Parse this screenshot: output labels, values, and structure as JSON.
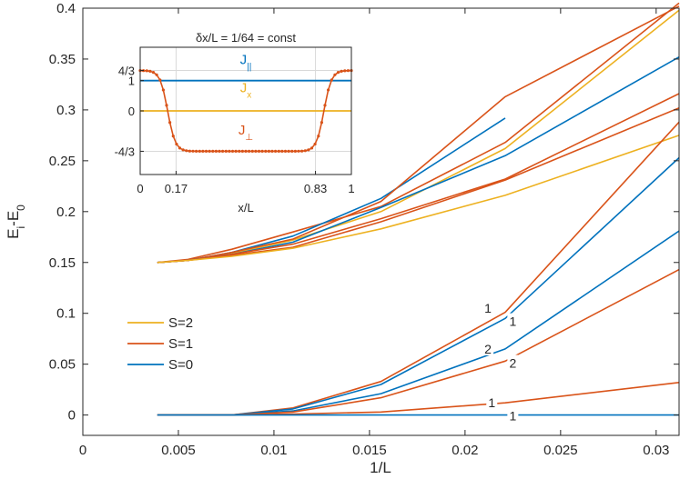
{
  "chart_data": {
    "type": "line",
    "xlabel": "1/L",
    "ylabel": "E_i-E_0",
    "xlim": [
      0,
      0.0312
    ],
    "ylim": [
      -0.02,
      0.4
    ],
    "xticks": [
      {
        "v": 0,
        "label": "0"
      },
      {
        "v": 0.005,
        "label": "0.005"
      },
      {
        "v": 0.01,
        "label": "0.01"
      },
      {
        "v": 0.015,
        "label": "0.015"
      },
      {
        "v": 0.02,
        "label": "0.02"
      },
      {
        "v": 0.025,
        "label": "0.025"
      },
      {
        "v": 0.03,
        "label": "0.03"
      }
    ],
    "yticks": [
      {
        "v": 0,
        "label": "0"
      },
      {
        "v": 0.05,
        "label": "0.05"
      },
      {
        "v": 0.1,
        "label": "0.1"
      },
      {
        "v": 0.15,
        "label": "0.15"
      },
      {
        "v": 0.2,
        "label": "0.2"
      },
      {
        "v": 0.25,
        "label": "0.25"
      },
      {
        "v": 0.3,
        "label": "0.3"
      },
      {
        "v": 0.35,
        "label": "0.35"
      },
      {
        "v": 0.4,
        "label": "0.4"
      }
    ],
    "colors": {
      "S=2": "#EDB120",
      "S=1": "#D95319",
      "S=0": "#0072BD"
    },
    "legend": [
      {
        "label": "S=2",
        "color": "#EDB120"
      },
      {
        "label": "S=1",
        "color": "#D95319"
      },
      {
        "label": "S=0",
        "color": "#0072BD"
      }
    ],
    "series": [
      {
        "name": "S=1",
        "color": "#D95319",
        "x": [
          0.0039,
          0.0055,
          0.0078,
          0.011,
          0.0156,
          0.0221,
          0.0312
        ],
        "y": [
          0.15,
          0.153,
          0.163,
          0.18,
          0.205,
          0.268,
          0.405
        ]
      },
      {
        "name": "S=2",
        "color": "#EDB120",
        "x": [
          0.0039,
          0.0055,
          0.0078,
          0.011,
          0.0156,
          0.0221,
          0.0312
        ],
        "y": [
          0.15,
          0.152,
          0.159,
          0.172,
          0.2,
          0.262,
          0.398
        ]
      },
      {
        "name": "S=0",
        "color": "#0072BD",
        "x": [
          0.0039,
          0.0055,
          0.0078,
          0.011,
          0.0156,
          0.0221
        ],
        "y": [
          0.15,
          0.152,
          0.16,
          0.176,
          0.213,
          0.292
        ]
      },
      {
        "name": "S=1",
        "color": "#D95319",
        "x": [
          0.0039,
          0.0055,
          0.0078,
          0.011,
          0.0156,
          0.0221,
          0.0312
        ],
        "y": [
          0.15,
          0.152,
          0.16,
          0.173,
          0.21,
          0.313,
          0.402
        ]
      },
      {
        "name": "S=0",
        "color": "#0072BD",
        "x": [
          0.0039,
          0.0055,
          0.0078,
          0.011,
          0.0156,
          0.0221,
          0.0312
        ],
        "y": [
          0.15,
          0.152,
          0.158,
          0.17,
          0.204,
          0.255,
          0.352
        ]
      },
      {
        "name": "S=1",
        "color": "#D95319",
        "x": [
          0.0039,
          0.0055,
          0.0078,
          0.011,
          0.0156,
          0.0221,
          0.0312
        ],
        "y": [
          0.15,
          0.152,
          0.158,
          0.168,
          0.193,
          0.232,
          0.316
        ]
      },
      {
        "name": "S=1",
        "color": "#D95319",
        "x": [
          0.0039,
          0.0055,
          0.0078,
          0.011,
          0.0156,
          0.0221,
          0.0312
        ],
        "y": [
          0.15,
          0.152,
          0.157,
          0.165,
          0.19,
          0.231,
          0.302
        ]
      },
      {
        "name": "S=2",
        "color": "#EDB120",
        "x": [
          0.0039,
          0.0055,
          0.0078,
          0.011,
          0.0156,
          0.0221,
          0.0312
        ],
        "y": [
          0.15,
          0.152,
          0.156,
          0.164,
          0.183,
          0.216,
          0.275
        ]
      },
      {
        "name": "S=1",
        "color": "#D95319",
        "x": [
          0.0039,
          0.0078,
          0.011,
          0.0156,
          0.0221,
          0.0312
        ],
        "y": [
          0.0,
          0.0,
          0.007,
          0.033,
          0.101,
          0.288
        ]
      },
      {
        "name": "S=0",
        "color": "#0072BD",
        "x": [
          0.0039,
          0.0078,
          0.011,
          0.0156,
          0.0221,
          0.0312
        ],
        "y": [
          0.0,
          0.0,
          0.006,
          0.03,
          0.095,
          0.253
        ]
      },
      {
        "name": "S=0",
        "color": "#0072BD",
        "x": [
          0.0039,
          0.0078,
          0.011,
          0.0156,
          0.0221,
          0.0312
        ],
        "y": [
          0.0,
          0.0,
          0.004,
          0.021,
          0.065,
          0.181
        ]
      },
      {
        "name": "S=1",
        "color": "#D95319",
        "x": [
          0.0039,
          0.0078,
          0.011,
          0.0156,
          0.0221,
          0.0312
        ],
        "y": [
          0.0,
          0.0,
          0.003,
          0.017,
          0.053,
          0.143
        ]
      },
      {
        "name": "S=1",
        "color": "#D95319",
        "x": [
          0.0039,
          0.0078,
          0.011,
          0.0156,
          0.0221,
          0.0312
        ],
        "y": [
          0.0,
          0.0,
          0.001,
          0.003,
          0.012,
          0.032
        ]
      },
      {
        "name": "S=0",
        "color": "#0072BD",
        "x": [
          0.0039,
          0.0312
        ],
        "y": [
          0.0,
          0.0
        ]
      }
    ],
    "annotations": [
      {
        "text": "1",
        "x": 0.0212,
        "y": 0.105
      },
      {
        "text": "1",
        "x": 0.0225,
        "y": 0.092
      },
      {
        "text": "2",
        "x": 0.0212,
        "y": 0.065
      },
      {
        "text": "2",
        "x": 0.0225,
        "y": 0.051
      },
      {
        "text": "1",
        "x": 0.0214,
        "y": 0.012
      },
      {
        "text": "1",
        "x": 0.0225,
        "y": -0.001
      }
    ],
    "inset": {
      "title": "δx/L = 1/64 = const",
      "xlabel": "x/L",
      "xlim": [
        0,
        1
      ],
      "ylim": [
        -2.1,
        2.1
      ],
      "xticks": [
        {
          "v": 0,
          "label": "0"
        },
        {
          "v": 0.17,
          "label": "0.17"
        },
        {
          "v": 0.83,
          "label": "0.83"
        },
        {
          "v": 1,
          "label": "1"
        }
      ],
      "yticks": [
        {
          "v": 1.3333,
          "label": "4/3"
        },
        {
          "v": 1,
          "label": "1"
        },
        {
          "v": 0,
          "label": "0"
        },
        {
          "v": -1.3333,
          "label": "-4/3"
        }
      ],
      "series": [
        {
          "name": "J_||",
          "color": "#0072BD",
          "type": "constant",
          "value": 1
        },
        {
          "name": "J_x",
          "color": "#EDB120",
          "type": "constant",
          "value": 0
        },
        {
          "name": "J_⊥",
          "color": "#D95319",
          "type": "profile",
          "high": 1.3333,
          "low": -1.3333,
          "n": 65,
          "center_left": 0.13,
          "center_right": 0.87,
          "width": 0.018
        }
      ],
      "labels": [
        {
          "text": "J",
          "sub": "||",
          "color": "#0072BD",
          "x": 0.5,
          "y": 1.55
        },
        {
          "text": "J",
          "sub": "x",
          "color": "#EDB120",
          "x": 0.5,
          "y": 0.62
        },
        {
          "text": "J",
          "sub": "⊥",
          "color": "#D95319",
          "x": 0.5,
          "y": -0.78
        }
      ]
    }
  }
}
